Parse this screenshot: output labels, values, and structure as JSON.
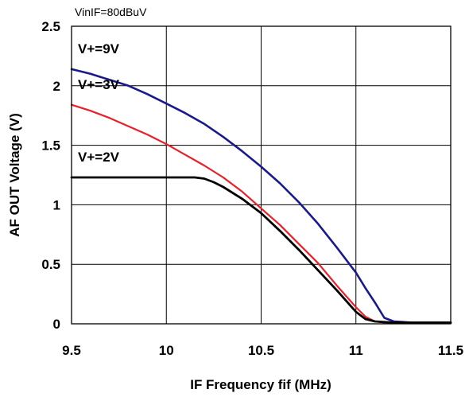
{
  "chart_data": {
    "type": "line",
    "title": "",
    "annotation": "VinIF=80dBuV",
    "xlabel": "IF Frequency fif (MHz)",
    "ylabel": "AF OUT Voltage (V)",
    "xlim": [
      9.5,
      11.5
    ],
    "ylim": [
      0,
      2.5
    ],
    "xticks": [
      9.5,
      10,
      10.5,
      11,
      11.5
    ],
    "xtick_labels": [
      "9.5",
      "10",
      "10.5",
      "11",
      "11.5"
    ],
    "yticks": [
      0,
      0.5,
      1,
      1.5,
      2,
      2.5
    ],
    "ytick_labels": [
      "0",
      "0.5",
      "1",
      "1.5",
      "2",
      "2.5"
    ],
    "grid": true,
    "series": [
      {
        "name": "V+=9V",
        "color": "#1a1a8c",
        "x": [
          9.5,
          9.6,
          9.7,
          9.8,
          9.9,
          10.0,
          10.1,
          10.2,
          10.3,
          10.4,
          10.5,
          10.6,
          10.7,
          10.8,
          10.9,
          11.0,
          11.05,
          11.1,
          11.15,
          11.2,
          11.3,
          11.4,
          11.5
        ],
        "y": [
          2.14,
          2.1,
          2.05,
          2.0,
          1.93,
          1.85,
          1.77,
          1.68,
          1.57,
          1.45,
          1.32,
          1.18,
          1.02,
          0.84,
          0.64,
          0.43,
          0.3,
          0.18,
          0.05,
          0.02,
          0.01,
          0.01,
          0.01
        ]
      },
      {
        "name": "V+=3V",
        "color": "#e8202a",
        "x": [
          9.5,
          9.6,
          9.7,
          9.8,
          9.9,
          10.0,
          10.1,
          10.2,
          10.3,
          10.4,
          10.5,
          10.6,
          10.7,
          10.8,
          10.9,
          11.0,
          11.05,
          11.1,
          11.15,
          11.2,
          11.3,
          11.4,
          11.5
        ],
        "y": [
          1.84,
          1.79,
          1.73,
          1.66,
          1.59,
          1.51,
          1.42,
          1.33,
          1.23,
          1.11,
          0.97,
          0.83,
          0.67,
          0.51,
          0.32,
          0.14,
          0.06,
          0.02,
          0.01,
          0.01,
          0.01,
          0.01,
          0.01
        ]
      },
      {
        "name": "V+=2V",
        "color": "#000000",
        "x": [
          9.5,
          9.6,
          9.7,
          9.8,
          9.9,
          10.0,
          10.1,
          10.15,
          10.2,
          10.25,
          10.3,
          10.4,
          10.5,
          10.6,
          10.7,
          10.8,
          10.9,
          11.0,
          11.05,
          11.1,
          11.2,
          11.3,
          11.4,
          11.5
        ],
        "y": [
          1.23,
          1.23,
          1.23,
          1.23,
          1.23,
          1.23,
          1.23,
          1.23,
          1.22,
          1.19,
          1.15,
          1.05,
          0.93,
          0.78,
          0.62,
          0.45,
          0.28,
          0.1,
          0.04,
          0.02,
          0.01,
          0.01,
          0.01,
          0.01
        ]
      }
    ]
  }
}
